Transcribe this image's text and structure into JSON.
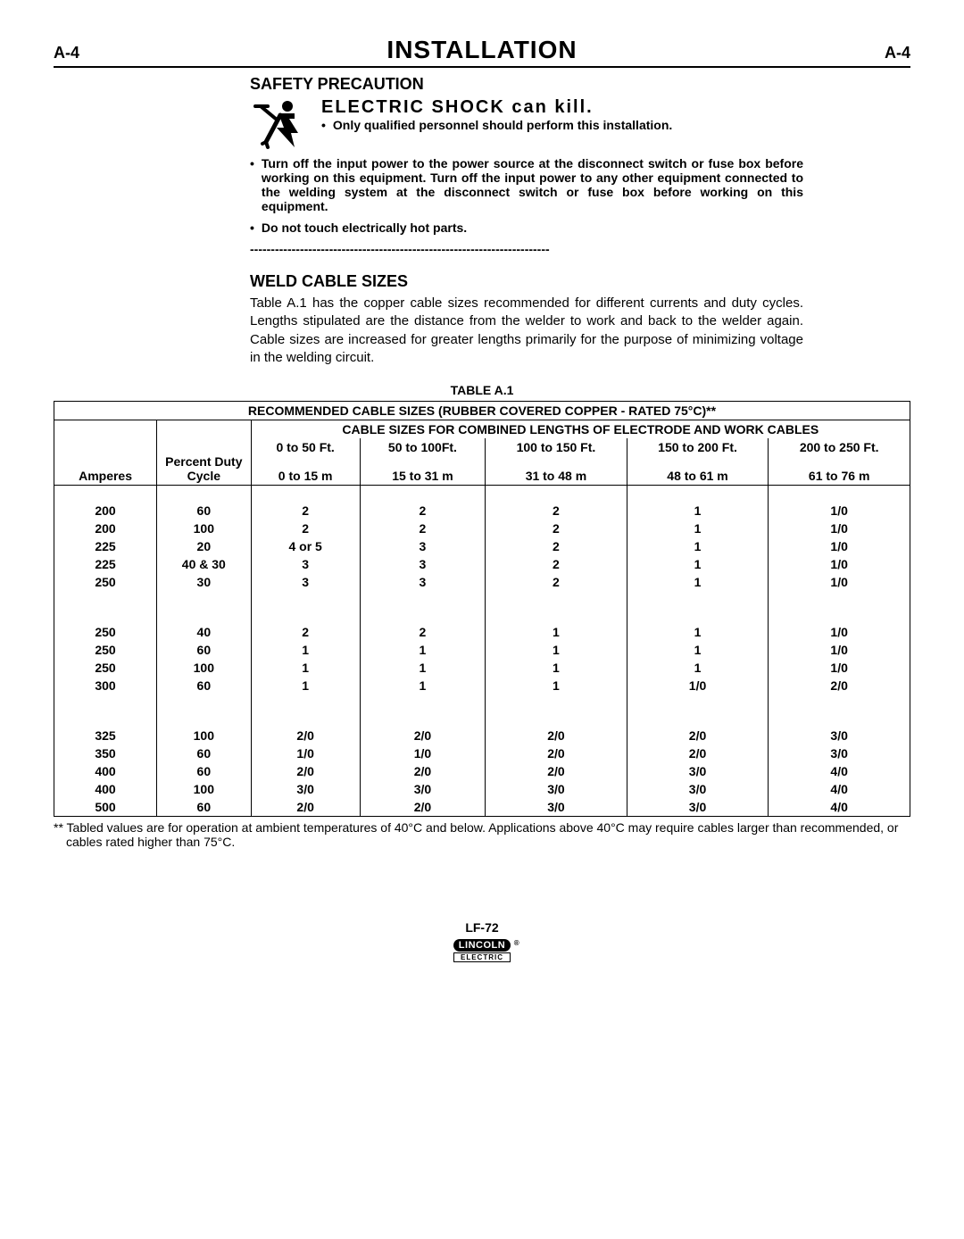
{
  "header": {
    "left_ref": "A-4",
    "title": "INSTALLATION",
    "right_ref": "A-4"
  },
  "safety": {
    "heading": "SAFETY PRECAUTION",
    "shock_title": "ELECTRIC  SHOCK  can kill.",
    "bullets": [
      "Only qualified personnel should perform this installation.",
      "Turn off the input power to the power source at the disconnect switch or fuse box before working on this equipment. Turn off the input power to any other equipment connected to the welding system at the disconnect switch or fuse box before working on this equipment.",
      "Do not touch electrically hot parts."
    ],
    "dash_rule": "------------------------------------------------------------------------"
  },
  "weld": {
    "heading": "WELD CABLE SIZES",
    "para": "Table A.1 has the copper cable sizes recommended for different currents and duty cycles.  Lengths stipulated are the distance from the welder to work and back to the welder again.  Cable sizes are increased for greater lengths primarily for the purpose of minimizing voltage in the welding circuit."
  },
  "table": {
    "title": "TABLE A.1",
    "top_caption": "RECOMMENDED CABLE SIZES (RUBBER COVERED COPPER - RATED 75°C)**",
    "group_caption": "CABLE SIZES FOR COMBINED LENGTHS OF ELECTRODE AND WORK CABLES",
    "col_headers": {
      "amperes": "Amperes",
      "duty_line": "Percent Duty Cycle",
      "c0a": "0 to 50 Ft.",
      "c0b": "0 to 15 m",
      "c1a": "50 to 100Ft.",
      "c1b": "15 to 31 m",
      "c2a": "100 to 150 Ft.",
      "c2b": "31 to 48 m",
      "c3a": "150 to 200 Ft.",
      "c3b": "48 to 61 m",
      "c4a": "200 to 250 Ft.",
      "c4b": "61 to 76 m"
    },
    "groups": [
      [
        [
          "200",
          "60",
          "2",
          "2",
          "2",
          "1",
          "1/0"
        ],
        [
          "200",
          "100",
          "2",
          "2",
          "2",
          "1",
          "1/0"
        ],
        [
          "225",
          "20",
          "4 or 5",
          "3",
          "2",
          "1",
          "1/0"
        ],
        [
          "225",
          "40 & 30",
          "3",
          "3",
          "2",
          "1",
          "1/0"
        ],
        [
          "250",
          "30",
          "3",
          "3",
          "2",
          "1",
          "1/0"
        ]
      ],
      [
        [
          "250",
          "40",
          "2",
          "2",
          "1",
          "1",
          "1/0"
        ],
        [
          "250",
          "60",
          "1",
          "1",
          "1",
          "1",
          "1/0"
        ],
        [
          "250",
          "100",
          "1",
          "1",
          "1",
          "1",
          "1/0"
        ],
        [
          "300",
          "60",
          "1",
          "1",
          "1",
          "1/0",
          "2/0"
        ]
      ],
      [
        [
          "325",
          "100",
          "2/0",
          "2/0",
          "2/0",
          "2/0",
          "3/0"
        ],
        [
          "350",
          "60",
          "1/0",
          "1/0",
          "2/0",
          "2/0",
          "3/0"
        ],
        [
          "400",
          "60",
          "2/0",
          "2/0",
          "2/0",
          "3/0",
          "4/0"
        ],
        [
          "400",
          "100",
          "3/0",
          "3/0",
          "3/0",
          "3/0",
          "4/0"
        ],
        [
          "500",
          "60",
          "2/0",
          "2/0",
          "3/0",
          "3/0",
          "4/0"
        ]
      ]
    ],
    "footnote": "** Tabled values are for operation at ambient temperatures of 40°C and below.  Applications above 40°C may require cables larger than recommended, or cables rated higher than 75°C."
  },
  "footer": {
    "model": "LF-72",
    "brand_top": "LINCOLN",
    "brand_reg": "®",
    "brand_bot": "ELECTRIC"
  }
}
